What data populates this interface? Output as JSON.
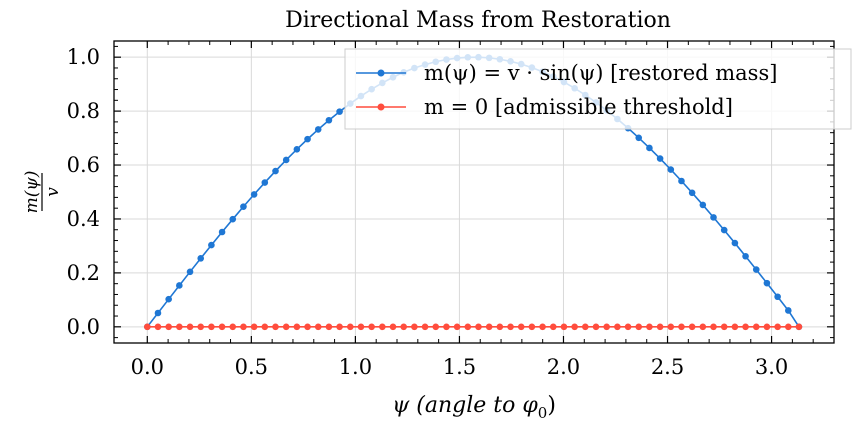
{
  "chart_data": {
    "type": "line",
    "title": "Directional Mass from Restoration",
    "xlabel": "ψ (angle to φ",
    "xlabel_sub": "0",
    "xlabel_close": ")",
    "ylabel_num": "m(ψ)",
    "ylabel_den": "v",
    "xlim": [
      -0.16,
      3.3
    ],
    "ylim": [
      -0.06,
      1.06
    ],
    "xticks": [
      0.0,
      0.5,
      1.0,
      1.5,
      2.0,
      2.5,
      3.0
    ],
    "xtick_labels": [
      "0.0",
      "0.5",
      "1.0",
      "1.5",
      "2.0",
      "2.5",
      "3.0"
    ],
    "yticks": [
      0.0,
      0.2,
      0.4,
      0.6,
      0.8,
      1.0
    ],
    "ytick_labels": [
      "0.0",
      "0.2",
      "0.4",
      "0.6",
      "0.8",
      "1.0"
    ],
    "grid": true,
    "legend_position": "top-right",
    "series": [
      {
        "name": "m(ψ) = v · sin(ψ) [restored mass]",
        "color": "#1f77d4",
        "x": [
          0,
          0.0513,
          0.1027,
          0.154,
          0.2054,
          0.2567,
          0.308,
          0.3594,
          0.4107,
          0.4621,
          0.5134,
          0.5647,
          0.6161,
          0.6674,
          0.7188,
          0.7701,
          0.8214,
          0.8728,
          0.9241,
          0.9755,
          1.0268,
          1.0781,
          1.1295,
          1.1808,
          1.2322,
          1.2835,
          1.3348,
          1.3862,
          1.4375,
          1.4889,
          1.5402,
          1.5915,
          1.6429,
          1.6942,
          1.7456,
          1.7969,
          1.8482,
          1.8996,
          1.9509,
          2.0023,
          2.0536,
          2.1049,
          2.1563,
          2.2076,
          2.259,
          2.3103,
          2.3616,
          2.413,
          2.4643,
          2.5157,
          2.567,
          2.6183,
          2.6697,
          2.721,
          2.7724,
          2.8237,
          2.875,
          2.9264,
          2.9777,
          3.0291,
          3.0804,
          3.1316
        ],
        "y": [
          0,
          0.0513,
          0.1025,
          0.1534,
          0.204,
          0.2539,
          0.3032,
          0.3517,
          0.3992,
          0.4457,
          0.4911,
          0.5351,
          0.5777,
          0.6189,
          0.6583,
          0.6961,
          0.7321,
          0.7661,
          0.7981,
          0.828,
          0.8558,
          0.8814,
          0.9046,
          0.9255,
          0.944,
          0.9598,
          0.9725,
          0.9831,
          0.9913,
          0.9967,
          0.9995,
          0.9998,
          0.9974,
          0.9923,
          0.9846,
          0.9743,
          0.9614,
          0.946,
          0.928,
          0.9076,
          0.8848,
          0.8597,
          0.8322,
          0.8025,
          0.7707,
          0.7368,
          0.701,
          0.6634,
          0.6241,
          0.5832,
          0.5408,
          0.4971,
          0.4521,
          0.4059,
          0.3587,
          0.3106,
          0.2617,
          0.2122,
          0.162,
          0.1115,
          0.0606,
          0
        ]
      },
      {
        "name": "m = 0 [admissible threshold]",
        "color": "#ff4d3d",
        "x": [
          0,
          0.0513,
          0.1027,
          0.154,
          0.2054,
          0.2567,
          0.308,
          0.3594,
          0.4107,
          0.4621,
          0.5134,
          0.5647,
          0.6161,
          0.6674,
          0.7188,
          0.7701,
          0.8214,
          0.8728,
          0.9241,
          0.9755,
          1.0268,
          1.0781,
          1.1295,
          1.1808,
          1.2322,
          1.2835,
          1.3348,
          1.3862,
          1.4375,
          1.4889,
          1.5402,
          1.5915,
          1.6429,
          1.6942,
          1.7456,
          1.7969,
          1.8482,
          1.8996,
          1.9509,
          2.0023,
          2.0536,
          2.1049,
          2.1563,
          2.2076,
          2.259,
          2.3103,
          2.3616,
          2.413,
          2.4643,
          2.5157,
          2.567,
          2.6183,
          2.6697,
          2.721,
          2.7724,
          2.8237,
          2.875,
          2.9264,
          2.9777,
          3.0291,
          3.0804,
          3.1316
        ],
        "y": [
          0,
          0,
          0,
          0,
          0,
          0,
          0,
          0,
          0,
          0,
          0,
          0,
          0,
          0,
          0,
          0,
          0,
          0,
          0,
          0,
          0,
          0,
          0,
          0,
          0,
          0,
          0,
          0,
          0,
          0,
          0,
          0,
          0,
          0,
          0,
          0,
          0,
          0,
          0,
          0,
          0,
          0,
          0,
          0,
          0,
          0,
          0,
          0,
          0,
          0,
          0,
          0,
          0,
          0,
          0,
          0,
          0,
          0,
          0,
          0,
          0,
          0
        ]
      }
    ]
  }
}
